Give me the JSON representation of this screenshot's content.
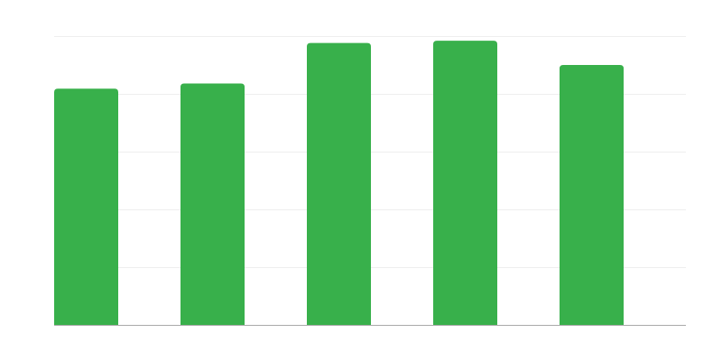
{
  "chart_data": {
    "type": "bar",
    "categories": [
      "",
      "",
      "",
      "",
      ""
    ],
    "values": [
      4.09,
      4.18,
      4.88,
      4.92,
      4.5
    ],
    "title": "",
    "xlabel": "",
    "ylabel": "",
    "ylim": [
      0,
      5
    ],
    "grid": true,
    "gridlines": [
      1,
      2,
      3,
      4,
      5
    ],
    "legend": "none",
    "colors": {
      "bar": "#38b04b",
      "grid": "#eeeeee",
      "axis": "#aaaaaa"
    }
  }
}
